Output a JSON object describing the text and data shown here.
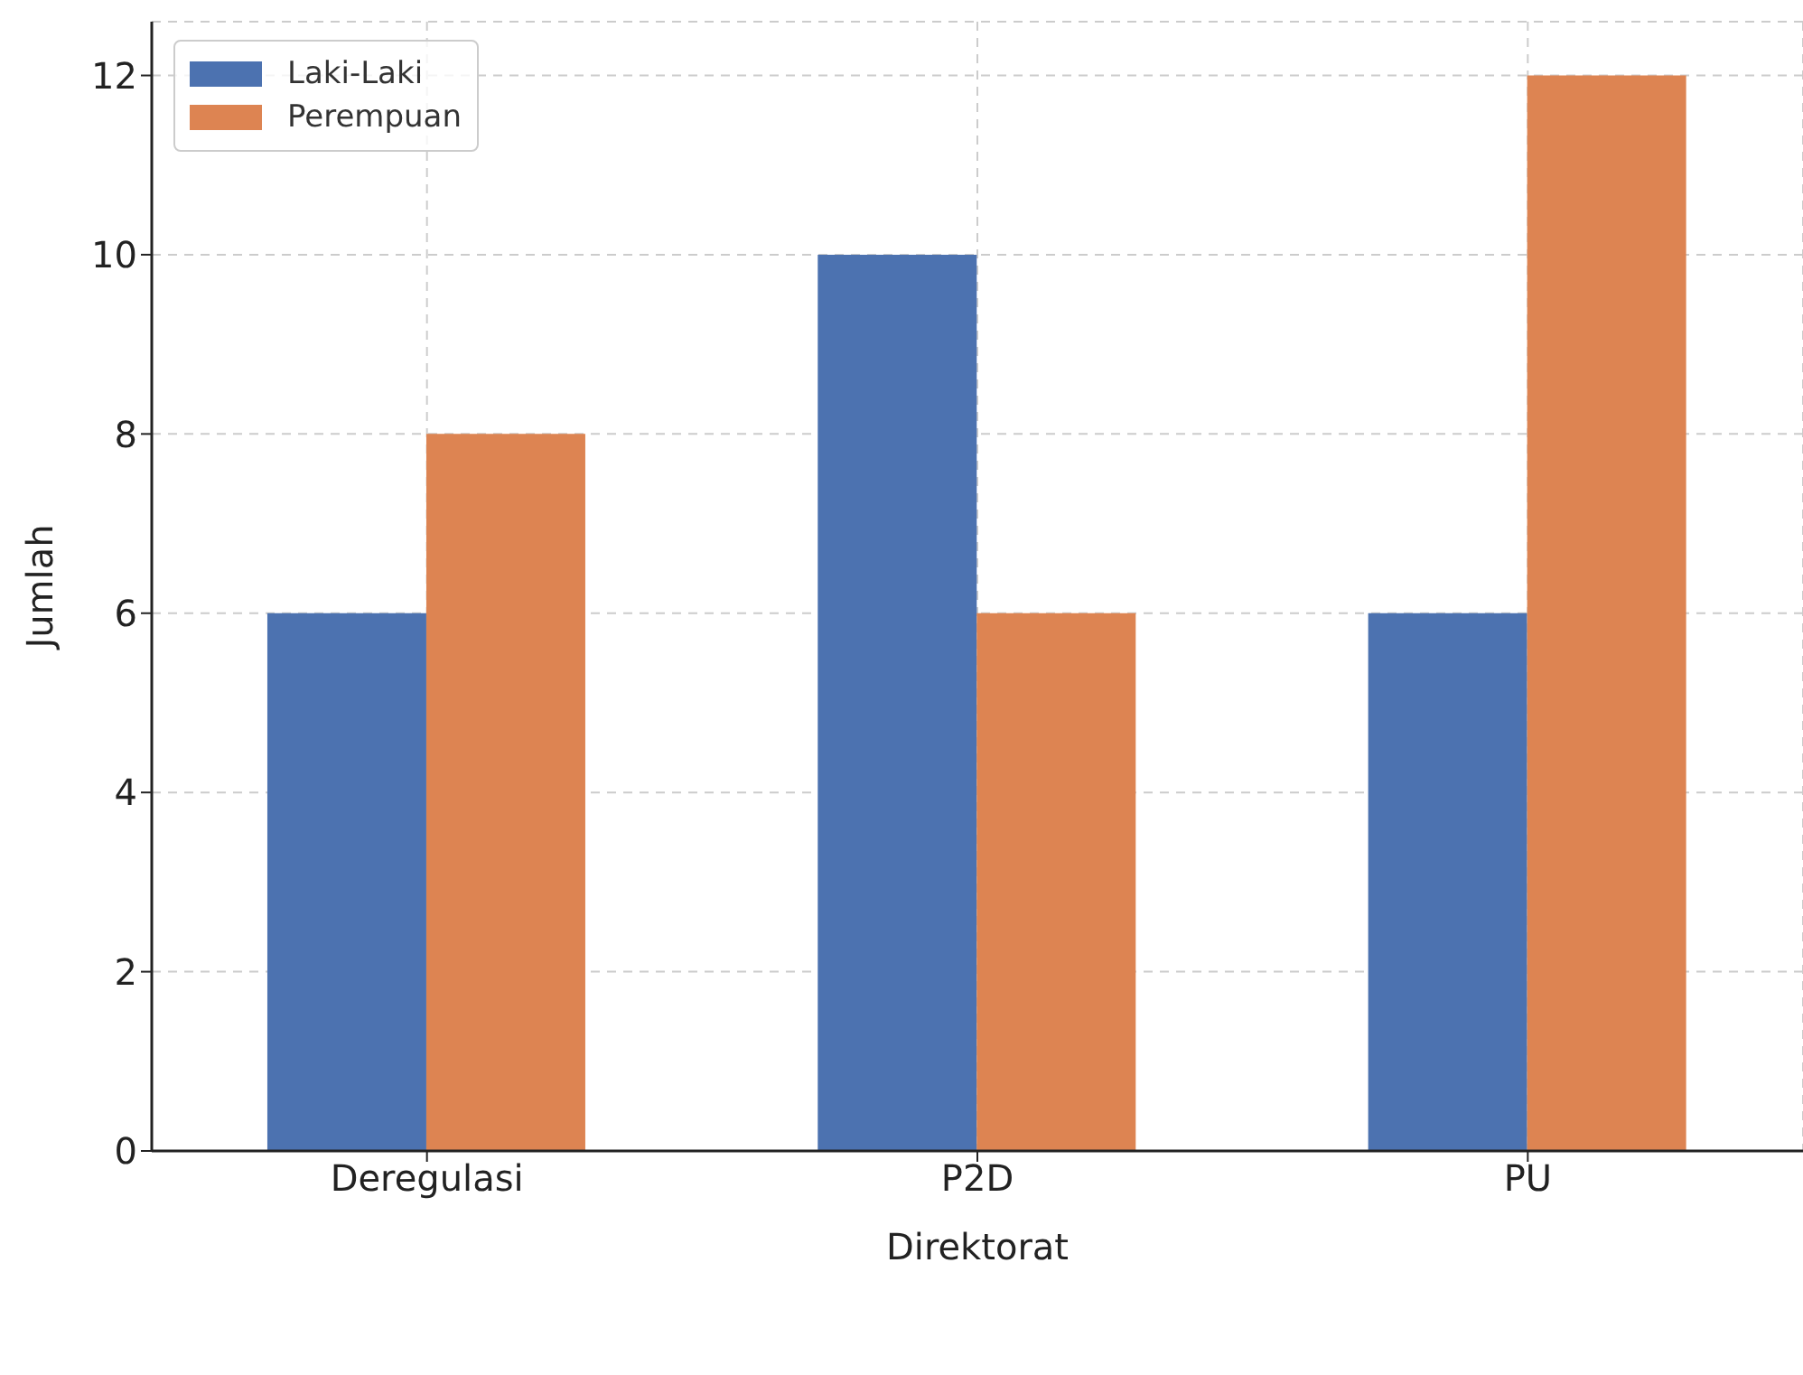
{
  "chart_data": {
    "type": "bar",
    "xlabel": "Direktorat",
    "ylabel": "Jumlah",
    "categories": [
      "Deregulasi",
      "P2D",
      "PU"
    ],
    "series": [
      {
        "name": "Laki-Laki",
        "color": "#4c72b0",
        "values": [
          6,
          10,
          6
        ]
      },
      {
        "name": "Perempuan",
        "color": "#dd8452",
        "values": [
          8,
          6,
          12
        ]
      }
    ],
    "ylim": [
      0,
      12.6
    ],
    "yticks": [
      0,
      2,
      4,
      6,
      8,
      10,
      12
    ],
    "grid": true,
    "legend": "top left"
  }
}
